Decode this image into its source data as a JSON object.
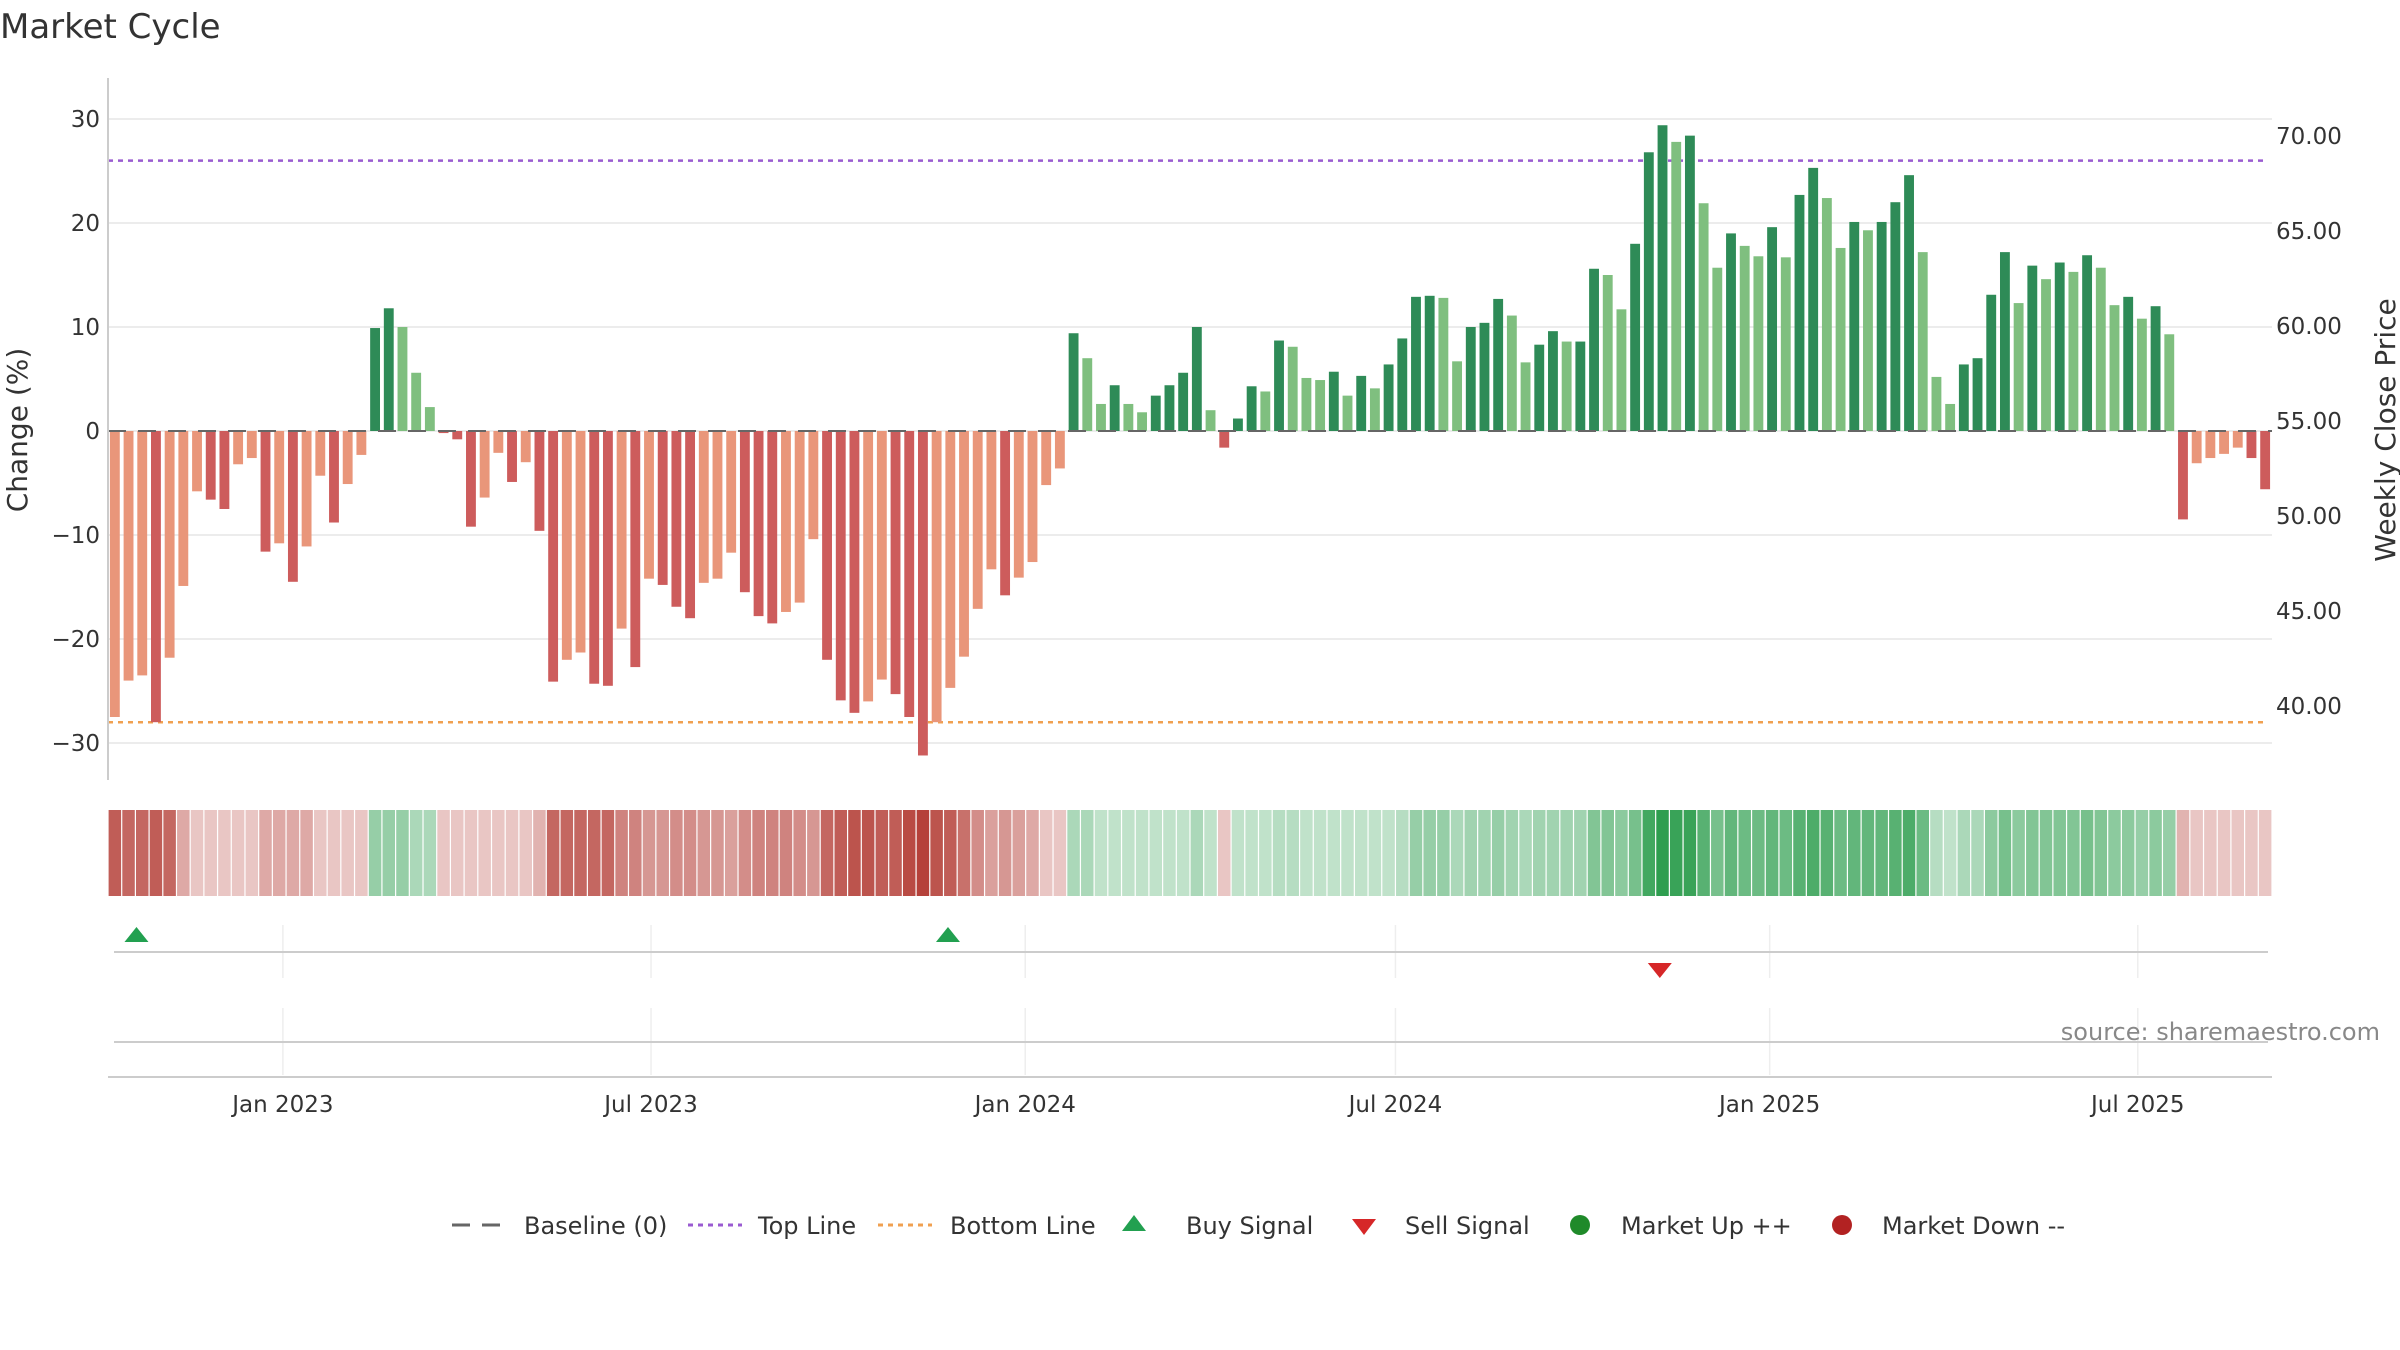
{
  "chart_data": {
    "type": "bar",
    "title": "Market Cycle",
    "ylabel": "Change (%)",
    "y2label": "Weekly Close Price",
    "ylim": [
      -34,
      34
    ],
    "y2lim": [
      37.2,
      71.8
    ],
    "yticks": [
      30,
      20,
      10,
      0,
      -10,
      -20,
      -30
    ],
    "ytick_labels": [
      "30",
      "20",
      "10",
      "0",
      "−10",
      "−20",
      "−30"
    ],
    "y2ticks": [
      70,
      65,
      60,
      55,
      50,
      45,
      40
    ],
    "y2tick_labels": [
      "70.00",
      "65.00",
      "60.00",
      "55.00",
      "50.00",
      "45.00",
      "40.00"
    ],
    "x_start": "2022-10-07",
    "x_end": "2025-09-05",
    "xticks": [
      {
        "date": "2023-01-01",
        "label": "Jan 2023"
      },
      {
        "date": "2023-07-01",
        "label": "Jul 2023"
      },
      {
        "date": "2024-01-01",
        "label": "Jan 2024"
      },
      {
        "date": "2024-07-01",
        "label": "Jul 2024"
      },
      {
        "date": "2025-01-01",
        "label": "Jan 2025"
      },
      {
        "date": "2025-07-01",
        "label": "Jul 2025"
      }
    ],
    "top_line": 26,
    "bottom_line": -28,
    "grid": true,
    "legend_position": "bottom",
    "weekly_change": [
      -27.5,
      -24,
      -23.5,
      -28,
      -21.8,
      -14.9,
      -5.8,
      -6.6,
      -7.5,
      -3.2,
      -2.6,
      -11.6,
      -10.8,
      -14.5,
      -11.1,
      -4.3,
      -8.8,
      -5.1,
      -2.3,
      9.9,
      11.8,
      10.0,
      5.6,
      2.3,
      -0.2,
      -0.8,
      -9.2,
      -6.4,
      -2.1,
      -4.9,
      -3.0,
      -9.6,
      -24.1,
      -22.0,
      -21.3,
      -24.3,
      -24.5,
      -19.0,
      -22.7,
      -14.2,
      -14.8,
      -16.9,
      -18.0,
      -14.6,
      -14.2,
      -11.7,
      -15.5,
      -17.8,
      -18.5,
      -17.4,
      -16.5,
      -10.4,
      -22.0,
      -25.9,
      -27.1,
      -26.0,
      -23.9,
      -25.3,
      -27.5,
      -31.2,
      -28.0,
      -24.7,
      -21.7,
      -17.1,
      -13.3,
      -15.8,
      -14.1,
      -12.6,
      -5.2,
      -3.6,
      9.4,
      7.0,
      2.6,
      4.4,
      2.6,
      1.8,
      3.4,
      4.4,
      5.6,
      10.0,
      2.0,
      -1.6,
      1.2,
      4.3,
      3.8,
      8.7,
      8.1,
      5.1,
      4.9,
      5.7,
      3.4,
      5.3,
      4.1,
      6.4,
      8.9,
      12.9,
      13.0,
      12.8,
      6.7,
      10.0,
      10.4,
      12.7,
      11.1,
      6.6,
      8.3,
      9.6,
      8.6,
      8.6,
      15.6,
      15.0,
      11.7,
      18.0,
      26.8,
      29.4,
      27.8,
      28.4,
      21.9,
      15.7,
      19.0,
      17.8,
      16.8,
      19.6,
      16.7,
      22.7,
      25.3,
      22.4,
      17.6,
      20.1,
      19.3,
      20.1,
      22.0,
      24.6,
      17.2,
      5.2,
      2.6,
      6.4,
      7.0,
      13.1,
      17.2,
      12.3,
      15.9,
      14.6,
      16.2,
      15.3,
      16.9,
      15.7,
      12.1,
      12.9,
      10.8,
      12.0,
      9.3,
      -8.5,
      -3.1,
      -2.6,
      -2.2,
      -1.6,
      -2.6,
      -5.6
    ],
    "cycle_intensity": [
      0.85,
      0.8,
      0.8,
      0.85,
      0.8,
      0.45,
      0.3,
      0.3,
      0.3,
      0.3,
      0.3,
      0.45,
      0.45,
      0.45,
      0.45,
      0.3,
      0.3,
      0.3,
      0.3,
      0.5,
      0.5,
      0.5,
      0.4,
      0.4,
      0.3,
      0.3,
      0.3,
      0.3,
      0.3,
      0.3,
      0.3,
      0.4,
      0.8,
      0.8,
      0.8,
      0.8,
      0.8,
      0.65,
      0.65,
      0.55,
      0.55,
      0.6,
      0.6,
      0.55,
      0.55,
      0.5,
      0.6,
      0.65,
      0.65,
      0.65,
      0.6,
      0.55,
      0.8,
      0.85,
      0.9,
      0.9,
      0.85,
      0.85,
      0.95,
      1.0,
      0.9,
      0.85,
      0.75,
      0.6,
      0.5,
      0.55,
      0.5,
      0.45,
      0.3,
      0.3,
      0.4,
      0.4,
      0.3,
      0.3,
      0.3,
      0.3,
      0.3,
      0.3,
      0.3,
      0.4,
      0.3,
      0.3,
      0.3,
      0.3,
      0.3,
      0.35,
      0.35,
      0.3,
      0.3,
      0.3,
      0.3,
      0.3,
      0.3,
      0.3,
      0.35,
      0.5,
      0.5,
      0.5,
      0.4,
      0.45,
      0.45,
      0.5,
      0.45,
      0.4,
      0.45,
      0.45,
      0.45,
      0.45,
      0.6,
      0.6,
      0.55,
      0.65,
      0.9,
      1.0,
      0.95,
      0.95,
      0.8,
      0.65,
      0.75,
      0.7,
      0.7,
      0.75,
      0.7,
      0.8,
      0.85,
      0.8,
      0.7,
      0.75,
      0.75,
      0.75,
      0.8,
      0.85,
      0.7,
      0.35,
      0.3,
      0.4,
      0.4,
      0.55,
      0.65,
      0.55,
      0.6,
      0.6,
      0.6,
      0.6,
      0.65,
      0.6,
      0.55,
      0.55,
      0.5,
      0.55,
      0.5,
      0.4,
      0.3,
      0.3,
      0.3,
      0.3,
      0.3,
      0.3
    ],
    "buy_signals": [
      "2022-10-21",
      "2023-11-24"
    ],
    "sell_signals": [
      "2024-11-08"
    ],
    "colors": {
      "up_strong": "#2e8b57",
      "up_light": "#7fbf7f",
      "down_strong": "#cd5c5c",
      "down_light": "#e9967a",
      "strip_up": "#2e9e4f",
      "strip_down": "#b5413a",
      "top_line": "#9a5bd1",
      "bottom_line": "#f0a050",
      "buy": "#22a050",
      "sell": "#d62728",
      "market_up": "#1f8a2a",
      "market_down": "#b22222",
      "baseline": "#666666"
    }
  },
  "legend": {
    "baseline": "Baseline (0)",
    "top_line": "Top Line",
    "bottom_line": "Bottom Line",
    "buy": "Buy Signal",
    "sell": "Sell Signal",
    "market_up": "Market Up ++",
    "market_down": "Market Down --"
  },
  "source": "source: sharemaestro.com"
}
